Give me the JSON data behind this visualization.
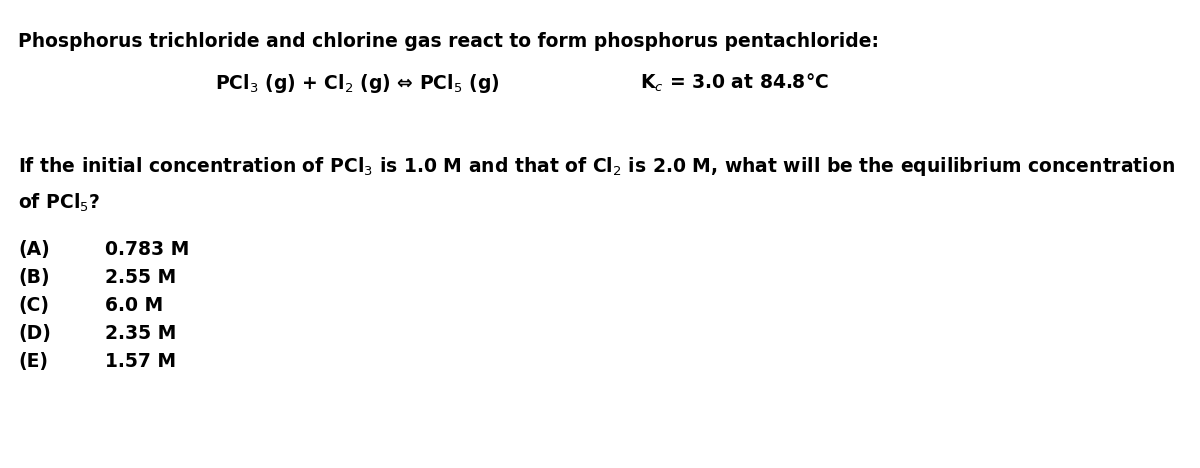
{
  "background_color": "#ffffff",
  "title_line": "Phosphorus trichloride and chlorine gas react to form phosphorus pentachloride:",
  "eq_left": "PCl$_3$ (g) + Cl$_2$ (g) ⇔ PCl$_5$ (g)",
  "eq_right": "K$_c$ = 3.0 at 84.8°C",
  "q_line1": "If the initial concentration of PCl$_3$ is 1.0 M and that of Cl$_2$ is 2.0 M, what will be the equilibrium concentration",
  "q_line2": "of PCl$_5$?",
  "choices": [
    {
      "label": "(A)",
      "text": "0.783 M"
    },
    {
      "label": "(B)",
      "text": "2.55 M"
    },
    {
      "label": "(C)",
      "text": "6.0 M"
    },
    {
      "label": "(D)",
      "text": "2.35 M"
    },
    {
      "label": "(E)",
      "text": "1.57 M"
    }
  ],
  "font_size": 13.5,
  "font_size_eq": 13.5,
  "text_color": "#000000",
  "fig_width": 12.0,
  "fig_height": 4.68,
  "dpi": 100
}
